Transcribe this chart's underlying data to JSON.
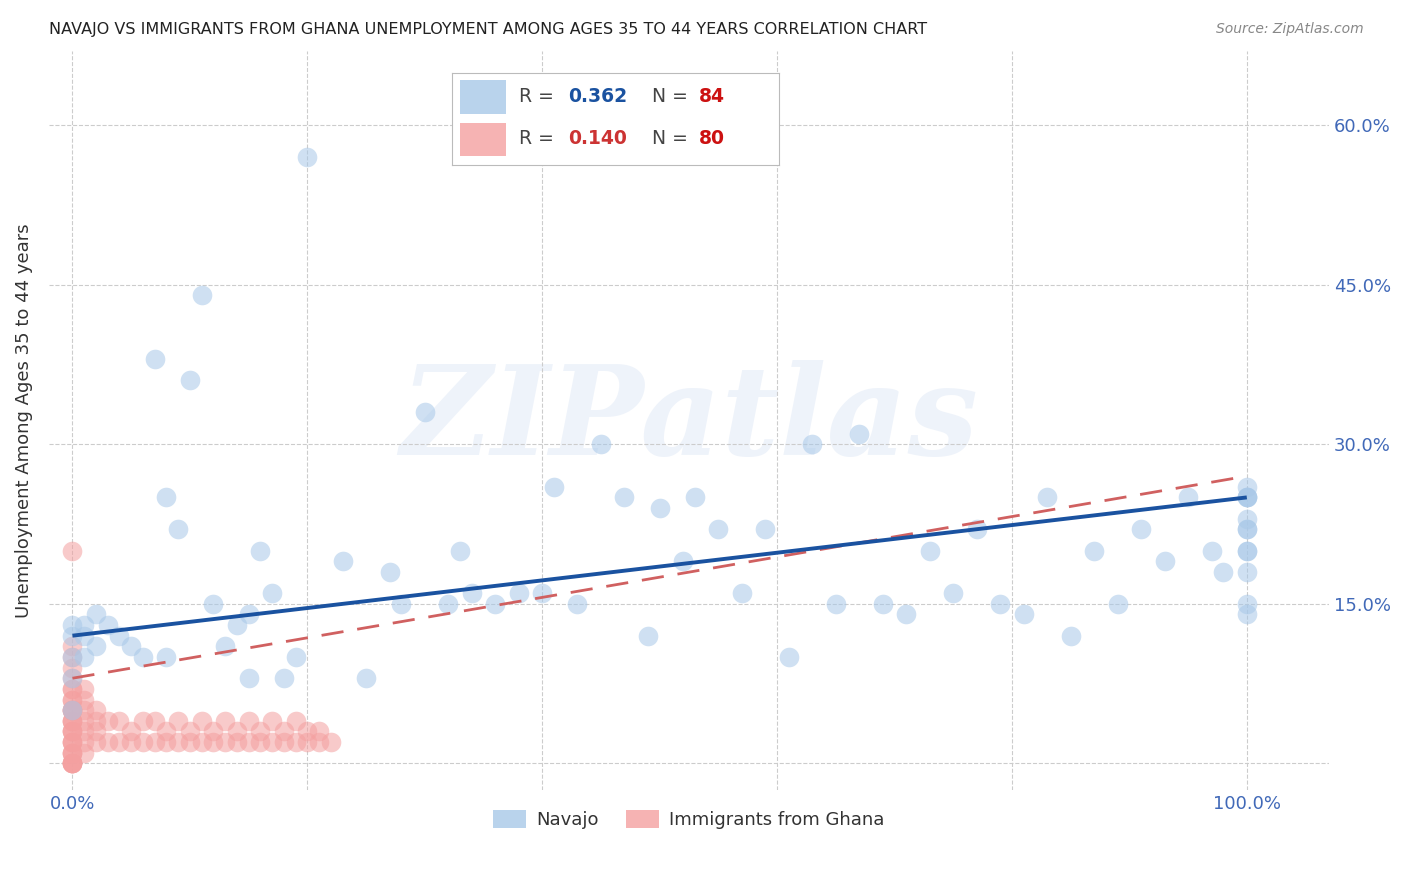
{
  "title": "NAVAJO VS IMMIGRANTS FROM GHANA UNEMPLOYMENT AMONG AGES 35 TO 44 YEARS CORRELATION CHART",
  "source": "Source: ZipAtlas.com",
  "tick_color": "#4169b8",
  "ylabel": "Unemployment Among Ages 35 to 44 years",
  "xlim": [
    -0.02,
    1.07
  ],
  "ylim": [
    -0.025,
    0.67
  ],
  "navajo_R": 0.362,
  "navajo_N": 84,
  "ghana_R": 0.14,
  "ghana_N": 80,
  "navajo_color": "#a8c8e8",
  "ghana_color": "#f4a0a0",
  "navajo_line_color": "#1a52a0",
  "ghana_line_color": "#d06060",
  "background_color": "#ffffff",
  "watermark": "ZIPatlas",
  "navajo_x": [
    0.0,
    0.0,
    0.0,
    0.0,
    0.0,
    0.01,
    0.01,
    0.01,
    0.02,
    0.02,
    0.03,
    0.04,
    0.05,
    0.06,
    0.07,
    0.08,
    0.08,
    0.09,
    0.1,
    0.11,
    0.12,
    0.13,
    0.14,
    0.15,
    0.15,
    0.16,
    0.17,
    0.18,
    0.19,
    0.2,
    0.23,
    0.25,
    0.27,
    0.28,
    0.3,
    0.32,
    0.33,
    0.34,
    0.36,
    0.38,
    0.4,
    0.41,
    0.43,
    0.45,
    0.47,
    0.49,
    0.5,
    0.52,
    0.53,
    0.55,
    0.57,
    0.59,
    0.61,
    0.63,
    0.65,
    0.67,
    0.69,
    0.71,
    0.73,
    0.75,
    0.77,
    0.79,
    0.81,
    0.83,
    0.85,
    0.87,
    0.89,
    0.91,
    0.93,
    0.95,
    0.97,
    0.98,
    1.0,
    1.0,
    1.0,
    1.0,
    1.0,
    1.0,
    1.0,
    1.0,
    1.0,
    1.0,
    1.0,
    1.0
  ],
  "navajo_y": [
    0.12,
    0.1,
    0.08,
    0.05,
    0.13,
    0.12,
    0.1,
    0.13,
    0.11,
    0.14,
    0.13,
    0.12,
    0.11,
    0.1,
    0.38,
    0.1,
    0.25,
    0.22,
    0.36,
    0.44,
    0.15,
    0.11,
    0.13,
    0.14,
    0.08,
    0.2,
    0.16,
    0.08,
    0.1,
    0.57,
    0.19,
    0.08,
    0.18,
    0.15,
    0.33,
    0.15,
    0.2,
    0.16,
    0.15,
    0.16,
    0.16,
    0.26,
    0.15,
    0.3,
    0.25,
    0.12,
    0.24,
    0.19,
    0.25,
    0.22,
    0.16,
    0.22,
    0.1,
    0.3,
    0.15,
    0.31,
    0.15,
    0.14,
    0.2,
    0.16,
    0.22,
    0.15,
    0.14,
    0.25,
    0.12,
    0.2,
    0.15,
    0.22,
    0.19,
    0.25,
    0.2,
    0.18,
    0.25,
    0.22,
    0.2,
    0.23,
    0.18,
    0.14,
    0.15,
    0.2,
    0.25,
    0.26,
    0.25,
    0.22
  ],
  "ghana_x": [
    0.0,
    0.0,
    0.0,
    0.0,
    0.0,
    0.0,
    0.0,
    0.0,
    0.0,
    0.0,
    0.0,
    0.0,
    0.0,
    0.0,
    0.0,
    0.0,
    0.0,
    0.0,
    0.0,
    0.0,
    0.0,
    0.0,
    0.0,
    0.0,
    0.0,
    0.0,
    0.0,
    0.0,
    0.0,
    0.0,
    0.01,
    0.01,
    0.01,
    0.01,
    0.01,
    0.01,
    0.01,
    0.02,
    0.02,
    0.02,
    0.02,
    0.03,
    0.03,
    0.04,
    0.04,
    0.05,
    0.05,
    0.06,
    0.06,
    0.07,
    0.07,
    0.08,
    0.08,
    0.09,
    0.09,
    0.1,
    0.1,
    0.11,
    0.11,
    0.12,
    0.12,
    0.13,
    0.13,
    0.14,
    0.14,
    0.15,
    0.15,
    0.16,
    0.16,
    0.17,
    0.17,
    0.18,
    0.18,
    0.19,
    0.19,
    0.2,
    0.2,
    0.21,
    0.21,
    0.22
  ],
  "ghana_y": [
    0.0,
    0.0,
    0.0,
    0.0,
    0.0,
    0.01,
    0.01,
    0.01,
    0.02,
    0.02,
    0.02,
    0.03,
    0.03,
    0.03,
    0.04,
    0.04,
    0.04,
    0.05,
    0.05,
    0.05,
    0.06,
    0.06,
    0.07,
    0.07,
    0.08,
    0.09,
    0.1,
    0.11,
    0.2,
    0.05,
    0.01,
    0.02,
    0.03,
    0.04,
    0.05,
    0.06,
    0.07,
    0.02,
    0.03,
    0.04,
    0.05,
    0.02,
    0.04,
    0.02,
    0.04,
    0.02,
    0.03,
    0.02,
    0.04,
    0.02,
    0.04,
    0.02,
    0.03,
    0.02,
    0.04,
    0.02,
    0.03,
    0.02,
    0.04,
    0.02,
    0.03,
    0.02,
    0.04,
    0.02,
    0.03,
    0.02,
    0.04,
    0.02,
    0.03,
    0.02,
    0.04,
    0.02,
    0.03,
    0.02,
    0.04,
    0.02,
    0.03,
    0.02,
    0.03,
    0.02
  ]
}
